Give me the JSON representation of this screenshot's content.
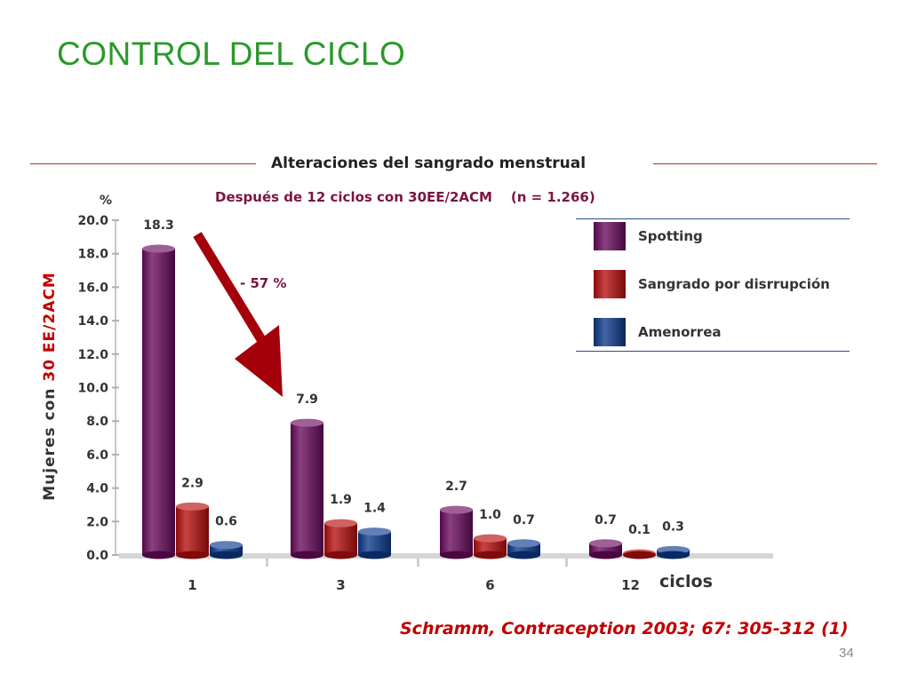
{
  "slide": {
    "title": "CONTROL DEL CICLO",
    "citation": "Schramm, Contraception 2003; 67: 305-312 (1)",
    "page_number": "34"
  },
  "chart_data": {
    "type": "bar",
    "title": "Alteraciones del sangrado menstrual",
    "subtitle": "Después de 12 ciclos con 30EE/2ACM    (n = 1.266)",
    "unit_label": "%",
    "ylabel": {
      "prefix": "Mujeres con ",
      "highlight": "30 EE/2ACM"
    },
    "xlabel": "ciclos",
    "categories": [
      "1",
      "3",
      "6",
      "12"
    ],
    "ylim": [
      0,
      20
    ],
    "yticks": [
      "0.0",
      "2.0",
      "4.0",
      "6.0",
      "8.0",
      "10.0",
      "12.0",
      "14.0",
      "16.0",
      "18.0",
      "20.0"
    ],
    "series": [
      {
        "name": "Spotting",
        "values": [
          18.3,
          7.9,
          2.7,
          0.7
        ],
        "labels": [
          "18.3",
          "7.9",
          "2.7",
          "0.7"
        ],
        "color": "#6a0a5e"
      },
      {
        "name": "Sangrado por disrrupción",
        "values": [
          2.9,
          1.9,
          1.0,
          0.1
        ],
        "labels": [
          "2.9",
          "1.9",
          "1.0",
          "0.1"
        ],
        "color": "#b80e0e"
      },
      {
        "name": "Amenorrea",
        "values": [
          0.6,
          1.4,
          0.7,
          0.3
        ],
        "labels": [
          "0.6",
          "1.4",
          "0.7",
          "0.3"
        ],
        "color": "#0d3a8f"
      }
    ],
    "annotation": "- 57 %",
    "legend_position": "top-right",
    "grid": false
  }
}
